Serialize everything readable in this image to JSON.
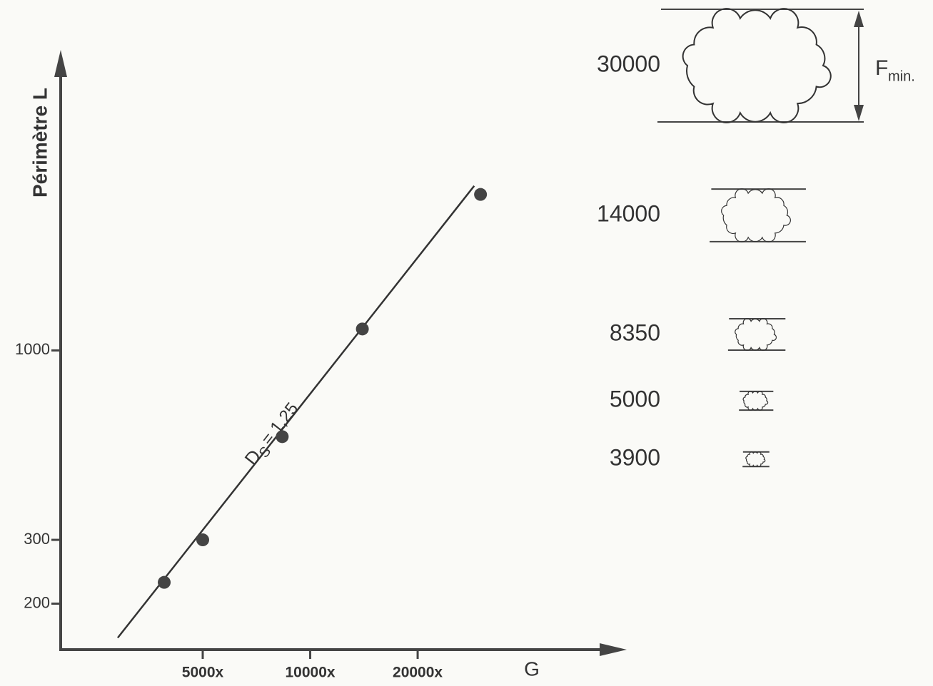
{
  "chart_data": {
    "type": "scatter",
    "xlabel": "G",
    "ylabel": "Périmètre L",
    "x": [
      3900,
      5000,
      8350,
      14000,
      30000
    ],
    "values": [
      229,
      300,
      578,
      1146,
      2695
    ],
    "color": "#444444",
    "fit": {
      "x": [
        2890,
        28800
      ],
      "values": [
        161,
        2845
      ]
    },
    "annotation": {
      "symbol": "D",
      "subscript": "S",
      "text": "= 1,25"
    },
    "xlog": true,
    "ylog": true,
    "xlim": [
      2000,
      76000
    ],
    "ylim": [
      150,
      6600
    ],
    "xticks": [
      {
        "value": 5000,
        "label": "5000x"
      },
      {
        "value": 10000,
        "label": "10000x"
      },
      {
        "value": 20000,
        "label": "20000x"
      }
    ],
    "yticks": [
      200,
      300,
      1000
    ]
  },
  "panel": {
    "magnifications": [
      30000,
      14000,
      8350,
      5000,
      3900
    ],
    "measure": {
      "symbol": "F",
      "subscript": "min."
    }
  }
}
